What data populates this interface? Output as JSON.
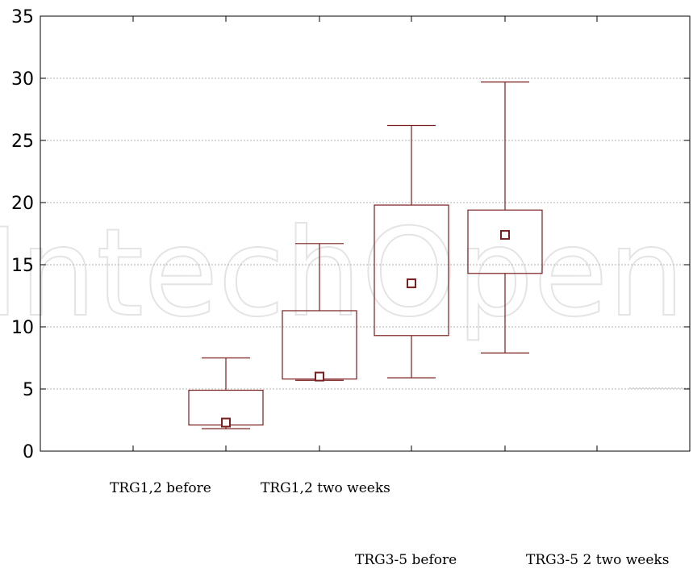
{
  "watermark": "IntechOpen",
  "chart_data": {
    "type": "box",
    "title": "",
    "xlabel": "",
    "ylabel": "",
    "ylim": [
      0,
      35
    ],
    "yticks": [
      0,
      5,
      10,
      15,
      20,
      25,
      30,
      35
    ],
    "grid": true,
    "categories": [
      "TRG1,2 before",
      "TRG1,2  two weeks",
      "TRG3-5 before",
      "TRG3-5  2 two weeks"
    ],
    "boxes": [
      {
        "category": "TRG1,2 before",
        "min": 1.8,
        "q1": 2.1,
        "median": 2.3,
        "q3": 4.9,
        "max": 7.5
      },
      {
        "category": "TRG1,2  two weeks",
        "min": 5.7,
        "q1": 5.8,
        "median": 6.0,
        "q3": 11.3,
        "max": 16.7
      },
      {
        "category": "TRG3-5 before",
        "min": 5.9,
        "q1": 9.3,
        "median": 13.5,
        "q3": 19.8,
        "max": 26.2
      },
      {
        "category": "TRG3-5  2 two weeks",
        "min": 7.9,
        "q1": 14.3,
        "median": 17.4,
        "q3": 19.4,
        "max": 29.7
      }
    ],
    "colors": {
      "box": "#7a1f1f",
      "grid": "#b0b0b0",
      "axis": "#000000"
    }
  }
}
